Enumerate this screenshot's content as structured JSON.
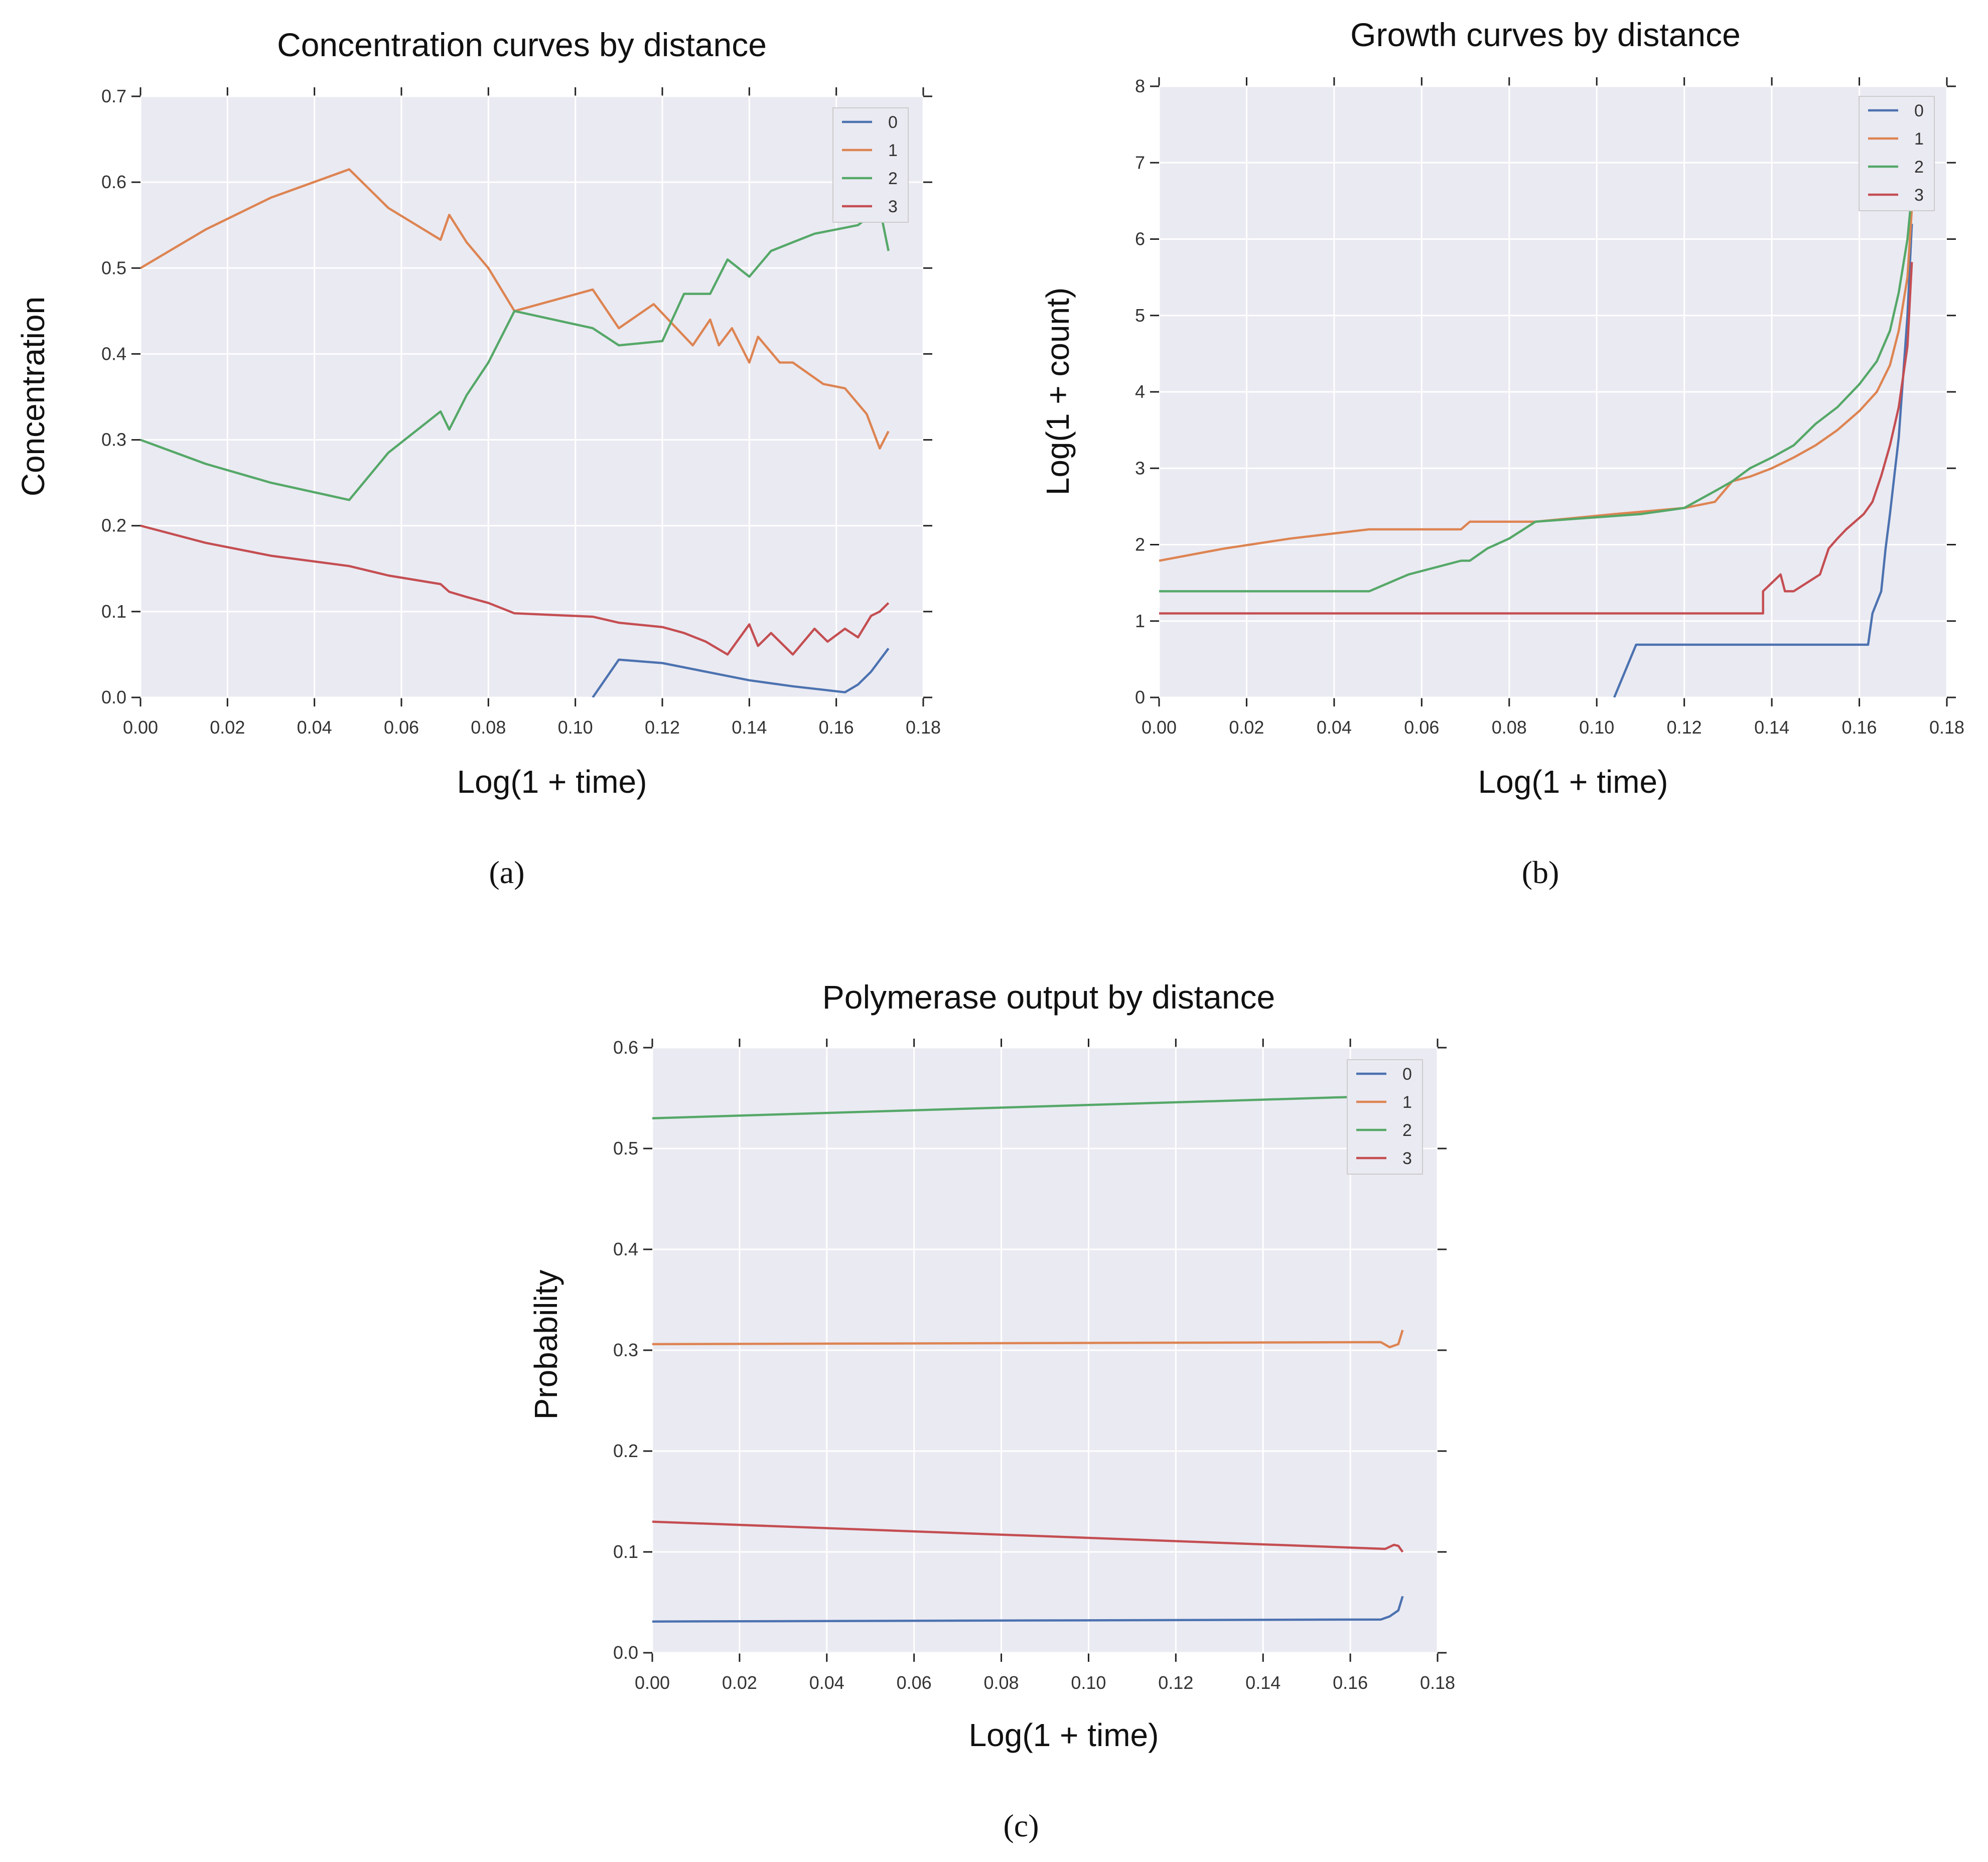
{
  "colors": {
    "s0": "#4c72b0",
    "s1": "#dd8452",
    "s2": "#55a868",
    "s3": "#c44e52",
    "bg": "#eaeaf2",
    "grid": "#ffffff"
  },
  "chart_data": [
    {
      "type": "line",
      "title": "Concentration curves by distance",
      "xlabel": "Log(1 + time)",
      "ylabel": "Concentration",
      "panel_label": "(a)",
      "xlim": [
        0,
        0.18
      ],
      "ylim": [
        0,
        0.7
      ],
      "xticks": [
        "0.00",
        "0.02",
        "0.04",
        "0.06",
        "0.08",
        "0.10",
        "0.12",
        "0.14",
        "0.16",
        "0.18"
      ],
      "yticks": [
        "0.0",
        "0.1",
        "0.2",
        "0.3",
        "0.4",
        "0.5",
        "0.6",
        "0.7"
      ],
      "legend": [
        "0",
        "1",
        "2",
        "3"
      ],
      "legend_position": "top-right",
      "series": [
        {
          "name": "0",
          "x": [
            0.104,
            0.11,
            0.12,
            0.13,
            0.14,
            0.15,
            0.162,
            0.165,
            0.168,
            0.172
          ],
          "y": [
            0.0,
            0.044,
            0.04,
            0.03,
            0.02,
            0.013,
            0.006,
            0.015,
            0.03,
            0.057
          ]
        },
        {
          "name": "1",
          "x": [
            0,
            0.015,
            0.03,
            0.048,
            0.057,
            0.069,
            0.071,
            0.075,
            0.08,
            0.086,
            0.104,
            0.11,
            0.118,
            0.127,
            0.131,
            0.133,
            0.136,
            0.14,
            0.142,
            0.147,
            0.15,
            0.157,
            0.162,
            0.167,
            0.17,
            0.172
          ],
          "y": [
            0.5,
            0.545,
            0.582,
            0.615,
            0.57,
            0.533,
            0.562,
            0.53,
            0.5,
            0.45,
            0.475,
            0.43,
            0.458,
            0.41,
            0.44,
            0.41,
            0.43,
            0.39,
            0.42,
            0.39,
            0.39,
            0.365,
            0.36,
            0.33,
            0.29,
            0.31
          ]
        },
        {
          "name": "2",
          "x": [
            0,
            0.015,
            0.03,
            0.048,
            0.057,
            0.069,
            0.071,
            0.075,
            0.08,
            0.086,
            0.104,
            0.11,
            0.12,
            0.125,
            0.131,
            0.135,
            0.14,
            0.145,
            0.15,
            0.155,
            0.16,
            0.165,
            0.17,
            0.172
          ],
          "y": [
            0.3,
            0.272,
            0.25,
            0.23,
            0.285,
            0.333,
            0.312,
            0.352,
            0.39,
            0.45,
            0.43,
            0.41,
            0.415,
            0.47,
            0.47,
            0.51,
            0.49,
            0.52,
            0.53,
            0.54,
            0.545,
            0.55,
            0.57,
            0.52
          ]
        },
        {
          "name": "3",
          "x": [
            0,
            0.015,
            0.03,
            0.048,
            0.057,
            0.069,
            0.071,
            0.075,
            0.08,
            0.086,
            0.104,
            0.11,
            0.12,
            0.125,
            0.13,
            0.135,
            0.14,
            0.142,
            0.145,
            0.15,
            0.155,
            0.158,
            0.162,
            0.165,
            0.168,
            0.17,
            0.172
          ],
          "y": [
            0.2,
            0.18,
            0.165,
            0.153,
            0.142,
            0.132,
            0.123,
            0.117,
            0.11,
            0.098,
            0.094,
            0.087,
            0.082,
            0.075,
            0.065,
            0.05,
            0.085,
            0.06,
            0.075,
            0.05,
            0.08,
            0.065,
            0.08,
            0.07,
            0.095,
            0.1,
            0.11
          ]
        }
      ]
    },
    {
      "type": "line",
      "title": "Growth curves by distance",
      "xlabel": "Log(1 + time)",
      "ylabel": "Log(1 + count)",
      "panel_label": "(b)",
      "xlim": [
        0,
        0.18
      ],
      "ylim": [
        0,
        8
      ],
      "xticks": [
        "0.00",
        "0.02",
        "0.04",
        "0.06",
        "0.08",
        "0.10",
        "0.12",
        "0.14",
        "0.16",
        "0.18"
      ],
      "yticks": [
        "0",
        "1",
        "2",
        "3",
        "4",
        "5",
        "6",
        "7",
        "8"
      ],
      "legend": [
        "0",
        "1",
        "2",
        "3"
      ],
      "legend_position": "top-right",
      "series": [
        {
          "name": "0",
          "x": [
            0.104,
            0.109,
            0.109,
            0.162,
            0.163,
            0.165,
            0.166,
            0.167,
            0.168,
            0.169,
            0.17,
            0.171,
            0.172
          ],
          "y": [
            0,
            0.69,
            0.69,
            0.69,
            1.1,
            1.39,
            1.95,
            2.4,
            2.9,
            3.4,
            4.2,
            5.0,
            6.2
          ]
        },
        {
          "name": "1",
          "x": [
            0,
            0.015,
            0.03,
            0.048,
            0.069,
            0.071,
            0.086,
            0.104,
            0.12,
            0.127,
            0.131,
            0.135,
            0.14,
            0.145,
            0.15,
            0.155,
            0.16,
            0.164,
            0.167,
            0.169,
            0.171,
            0.172
          ],
          "y": [
            1.79,
            1.95,
            2.08,
            2.2,
            2.2,
            2.3,
            2.3,
            2.4,
            2.48,
            2.56,
            2.83,
            2.89,
            3.0,
            3.14,
            3.3,
            3.5,
            3.75,
            4.0,
            4.35,
            4.8,
            5.5,
            6.4
          ]
        },
        {
          "name": "2",
          "x": [
            0,
            0.048,
            0.057,
            0.069,
            0.071,
            0.075,
            0.08,
            0.086,
            0.11,
            0.12,
            0.127,
            0.131,
            0.135,
            0.14,
            0.145,
            0.15,
            0.155,
            0.16,
            0.164,
            0.167,
            0.169,
            0.171,
            0.172
          ],
          "y": [
            1.39,
            1.39,
            1.61,
            1.79,
            1.79,
            1.95,
            2.08,
            2.3,
            2.4,
            2.48,
            2.7,
            2.83,
            3.0,
            3.14,
            3.3,
            3.58,
            3.8,
            4.1,
            4.4,
            4.8,
            5.3,
            6.0,
            6.6
          ]
        },
        {
          "name": "3",
          "x": [
            0,
            0.138,
            0.138,
            0.142,
            0.143,
            0.145,
            0.151,
            0.153,
            0.155,
            0.157,
            0.159,
            0.161,
            0.163,
            0.165,
            0.167,
            0.169,
            0.171,
            0.172
          ],
          "y": [
            1.1,
            1.1,
            1.39,
            1.61,
            1.39,
            1.39,
            1.61,
            1.95,
            2.08,
            2.2,
            2.3,
            2.4,
            2.56,
            2.9,
            3.3,
            3.8,
            4.6,
            5.7
          ]
        }
      ]
    },
    {
      "type": "line",
      "title": "Polymerase output by distance",
      "xlabel": "Log(1 + time)",
      "ylabel": "Probability",
      "panel_label": "(c)",
      "xlim": [
        0,
        0.18
      ],
      "ylim": [
        0,
        0.6
      ],
      "xticks": [
        "0.00",
        "0.02",
        "0.04",
        "0.06",
        "0.08",
        "0.10",
        "0.12",
        "0.14",
        "0.16",
        "0.18"
      ],
      "yticks": [
        "0.0",
        "0.1",
        "0.2",
        "0.3",
        "0.4",
        "0.5",
        "0.6"
      ],
      "legend": [
        "0",
        "1",
        "2",
        "3"
      ],
      "legend_position": "top-right",
      "series": [
        {
          "name": "0",
          "x": [
            0,
            0.167,
            0.169,
            0.171,
            0.172
          ],
          "y": [
            0.031,
            0.033,
            0.036,
            0.042,
            0.056
          ]
        },
        {
          "name": "1",
          "x": [
            0,
            0.167,
            0.169,
            0.171,
            0.172
          ],
          "y": [
            0.306,
            0.308,
            0.303,
            0.306,
            0.32
          ]
        },
        {
          "name": "2",
          "x": [
            0,
            0.167
          ],
          "y": [
            0.53,
            0.552
          ]
        },
        {
          "name": "3",
          "x": [
            0,
            0.168,
            0.17,
            0.171,
            0.172
          ],
          "y": [
            0.13,
            0.103,
            0.107,
            0.106,
            0.1
          ]
        }
      ]
    }
  ]
}
